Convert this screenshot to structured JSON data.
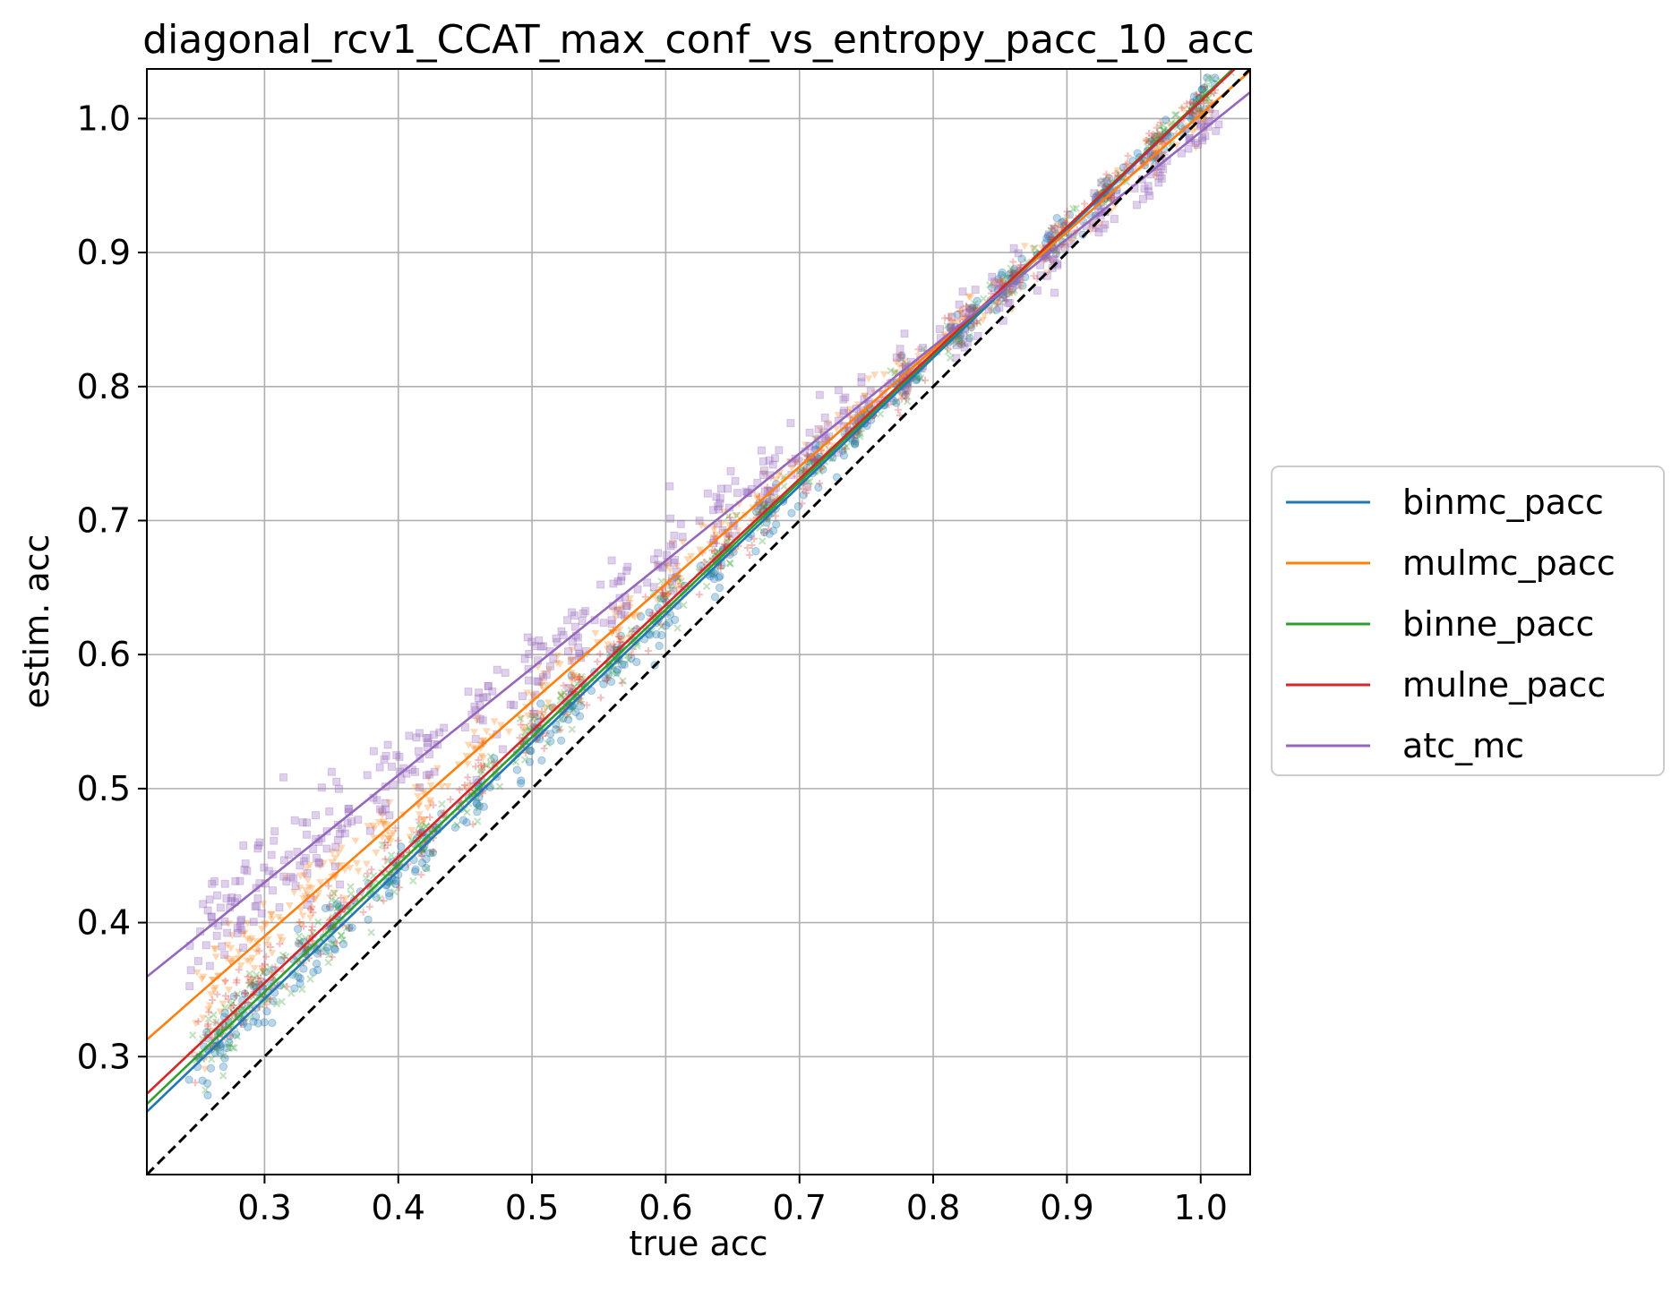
{
  "chart_data": {
    "type": "scatter",
    "title": "diagonal_rcv1_CCAT_max_conf_vs_entropy_pacc_10_acc",
    "xlabel": "true acc",
    "ylabel": "estim. acc",
    "xlim": [
      0.212,
      1.037
    ],
    "ylim": [
      0.212,
      1.037
    ],
    "grid": true,
    "legend_position": "outside-right",
    "xticks": [
      0.3,
      0.4,
      0.5,
      0.6,
      0.7,
      0.8,
      0.9,
      1.0
    ],
    "xtick_labels": [
      "0.3",
      "0.4",
      "0.5",
      "0.6",
      "0.7",
      "0.8",
      "0.9",
      "1.0"
    ],
    "yticks": [
      0.3,
      0.4,
      0.5,
      0.6,
      0.7,
      0.8,
      0.9,
      1.0
    ],
    "ytick_labels": [
      "0.3",
      "0.4",
      "0.5",
      "0.6",
      "0.7",
      "0.8",
      "0.9",
      "1.0"
    ],
    "reference_line": {
      "style": "dashed",
      "color": "#000000",
      "slope": 1,
      "intercept": 0
    },
    "x_clusters": [
      0.26,
      0.28,
      0.3,
      0.33,
      0.355,
      0.39,
      0.42,
      0.46,
      0.5,
      0.53,
      0.565,
      0.6,
      0.64,
      0.675,
      0.71,
      0.745,
      0.78,
      0.82,
      0.855,
      0.89,
      0.93,
      0.965,
      1.0
    ],
    "series": [
      {
        "name": "binmc_pacc",
        "color": "#1f77b4",
        "marker": "circle",
        "fit_slope": 0.957,
        "fit_intercept": 0.056,
        "noise": 0.012
      },
      {
        "name": "mulmc_pacc",
        "color": "#ff7f0e",
        "marker": "triangle-down",
        "fit_slope": 0.876,
        "fit_intercept": 0.127,
        "noise": 0.015
      },
      {
        "name": "binne_pacc",
        "color": "#2ca02c",
        "marker": "x",
        "fit_slope": 0.951,
        "fit_intercept": 0.063,
        "noise": 0.012
      },
      {
        "name": "mulne_pacc",
        "color": "#d62728",
        "marker": "plus",
        "fit_slope": 0.94,
        "fit_intercept": 0.073,
        "noise": 0.014
      },
      {
        "name": "atc_mc",
        "color": "#9467bd",
        "marker": "square",
        "fit_slope": 0.8,
        "fit_intercept": 0.19,
        "noise": 0.02
      }
    ]
  }
}
